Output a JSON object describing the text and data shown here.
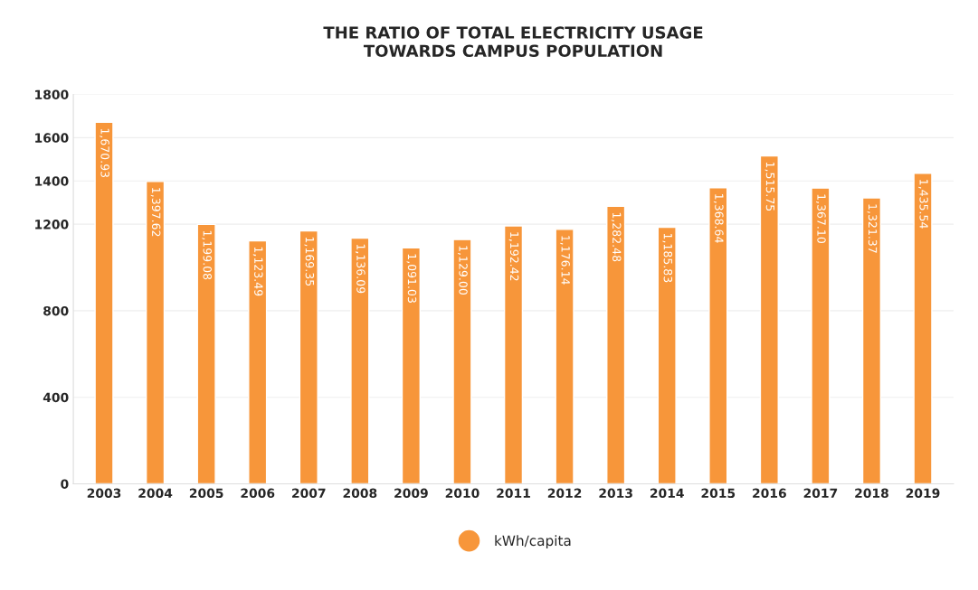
{
  "chart_data": {
    "type": "bar",
    "title": "THE RATIO OF TOTAL ELECTRICITY USAGE\nTOWARDS CAMPUS POPULATION",
    "categories": [
      "2003",
      "2004",
      "2005",
      "2006",
      "2007",
      "2008",
      "2009",
      "2010",
      "2011",
      "2012",
      "2013",
      "2014",
      "2015",
      "2016",
      "2017",
      "2018",
      "2019"
    ],
    "series": [
      {
        "name": "kWh/capita",
        "color": "#f7963a",
        "values": [
          1670.93,
          1397.62,
          1199.08,
          1123.49,
          1169.35,
          1136.09,
          1091.03,
          1129.0,
          1192.42,
          1176.14,
          1282.48,
          1185.83,
          1368.64,
          1515.75,
          1367.1,
          1321.37,
          1435.54
        ],
        "value_labels": [
          "1,670.93",
          "1,397.62",
          "1,199.08",
          "1,123.49",
          "1,169.35",
          "1,136.09",
          "1,091.03",
          "1,129.00",
          "1,192.42",
          "1,176.14",
          "1,282.48",
          "1,185.83",
          "1,368.64",
          "1,515.75",
          "1,367.10",
          "1,321.37",
          "1,435.54"
        ]
      }
    ],
    "ylim": [
      0,
      1800
    ],
    "yticks": [
      0,
      400,
      800,
      1200,
      1400,
      1600,
      1800
    ],
    "grid": "y",
    "legend": "bottom"
  }
}
